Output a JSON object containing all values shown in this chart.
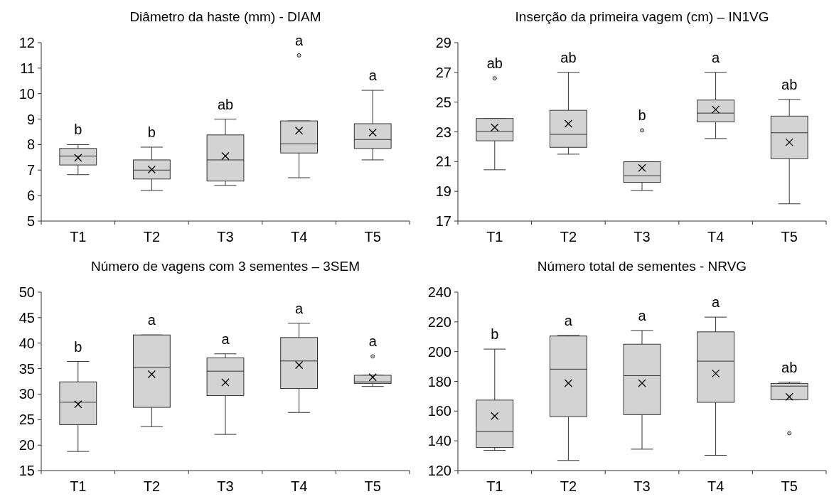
{
  "chart_data": [
    {
      "type": "box",
      "title": "Diâmetro da haste (mm) - DIAM",
      "categories": [
        "T1",
        "T2",
        "T3",
        "T4",
        "T5"
      ],
      "ylim": [
        5,
        12
      ],
      "yticks": [
        5,
        6,
        7,
        8,
        9,
        10,
        11,
        12
      ],
      "grid": false,
      "series": [
        {
          "color": "#d3d3d3",
          "boxes": [
            {
              "low": 6.82,
              "q1": 7.2,
              "median": 7.55,
              "q3": 7.85,
              "high": 8.0,
              "mean": 7.48
            },
            {
              "low": 6.2,
              "q1": 6.65,
              "median": 7.0,
              "q3": 7.4,
              "high": 7.9,
              "mean": 7.02
            },
            {
              "low": 6.4,
              "q1": 6.57,
              "median": 7.4,
              "q3": 8.38,
              "high": 9.0,
              "mean": 7.55
            },
            {
              "low": 6.7,
              "q1": 7.67,
              "median": 8.03,
              "q3": 8.93,
              "high": 8.93,
              "mean": 8.55,
              "outliers": [
                11.5
              ]
            },
            {
              "low": 7.4,
              "q1": 7.85,
              "median": 8.2,
              "q3": 8.82,
              "high": 10.13,
              "mean": 8.47
            }
          ]
        }
      ],
      "annotations": [
        "b",
        "b",
        "ab",
        "a",
        "a"
      ]
    },
    {
      "type": "box",
      "title": "Inserção da primeira vagem (cm) – IN1VG",
      "categories": [
        "T1",
        "T2",
        "T3",
        "T4",
        "T5"
      ],
      "ylim": [
        17,
        29
      ],
      "yticks": [
        17,
        19,
        21,
        23,
        25,
        27,
        29
      ],
      "grid": false,
      "series": [
        {
          "color": "#d3d3d3",
          "boxes": [
            {
              "low": 20.45,
              "q1": 22.4,
              "median": 23.03,
              "q3": 23.9,
              "high": 23.9,
              "mean": 23.3,
              "outliers": [
                26.6
              ]
            },
            {
              "low": 21.5,
              "q1": 21.96,
              "median": 22.83,
              "q3": 24.45,
              "high": 27.0,
              "mean": 23.55
            },
            {
              "low": 19.06,
              "q1": 19.6,
              "median": 20.05,
              "q3": 20.99,
              "high": 20.99,
              "mean": 20.57,
              "outliers": [
                23.1
              ]
            },
            {
              "low": 22.55,
              "q1": 23.67,
              "median": 24.26,
              "q3": 25.14,
              "high": 27.0,
              "mean": 24.5
            },
            {
              "low": 18.16,
              "q1": 21.2,
              "median": 22.94,
              "q3": 24.06,
              "high": 25.18,
              "mean": 22.3
            }
          ]
        }
      ],
      "annotations": [
        "ab",
        "ab",
        "b",
        "a",
        "ab"
      ]
    },
    {
      "type": "box",
      "title": "Número de vagens com 3 sementes – 3SEM",
      "categories": [
        "T1",
        "T2",
        "T3",
        "T4",
        "T5"
      ],
      "ylim": [
        15,
        50
      ],
      "yticks": [
        15,
        20,
        25,
        30,
        35,
        40,
        45,
        50
      ],
      "grid": false,
      "series": [
        {
          "color": "#d3d3d3",
          "boxes": [
            {
              "low": 18.75,
              "q1": 24.0,
              "median": 28.4,
              "q3": 32.4,
              "high": 36.4,
              "mean": 28.0
            },
            {
              "low": 23.6,
              "q1": 27.4,
              "median": 35.2,
              "q3": 41.6,
              "high": 41.6,
              "mean": 33.9
            },
            {
              "low": 22.1,
              "q1": 29.7,
              "median": 34.5,
              "q3": 37.1,
              "high": 37.9,
              "mean": 32.3
            },
            {
              "low": 26.4,
              "q1": 31.1,
              "median": 36.5,
              "q3": 41.1,
              "high": 43.9,
              "mean": 35.7
            },
            {
              "low": 31.5,
              "q1": 32.1,
              "median": 32.4,
              "q3": 33.7,
              "high": 33.7,
              "mean": 33.3,
              "outliers": [
                37.4
              ]
            }
          ]
        }
      ],
      "annotations": [
        "b",
        "a",
        "a",
        "a",
        "a"
      ]
    },
    {
      "type": "box",
      "title": "Número total de sementes - NRVG",
      "categories": [
        "T1",
        "T2",
        "T3",
        "T4",
        "T5"
      ],
      "ylim": [
        120,
        240
      ],
      "yticks": [
        120,
        140,
        160,
        180,
        200,
        220,
        240
      ],
      "grid": false,
      "series": [
        {
          "color": "#d3d3d3",
          "boxes": [
            {
              "low": 133.6,
              "q1": 135.5,
              "median": 146.2,
              "q3": 167.4,
              "high": 201.7,
              "mean": 156.7
            },
            {
              "low": 126.8,
              "q1": 156.3,
              "median": 188.2,
              "q3": 210.5,
              "high": 210.9,
              "mean": 178.8
            },
            {
              "low": 134.4,
              "q1": 157.6,
              "median": 183.8,
              "q3": 205.0,
              "high": 214.2,
              "mean": 178.8
            },
            {
              "low": 130.3,
              "q1": 165.9,
              "median": 193.6,
              "q3": 213.3,
              "high": 223.2,
              "mean": 185.3
            },
            {
              "low": 167.7,
              "q1": 167.7,
              "median": 176.8,
              "q3": 178.6,
              "high": 179.5,
              "mean": 169.6,
              "outliers": [
                145.1
              ]
            }
          ]
        }
      ],
      "annotations": [
        "b",
        "a",
        "a",
        "a",
        "ab"
      ]
    }
  ]
}
